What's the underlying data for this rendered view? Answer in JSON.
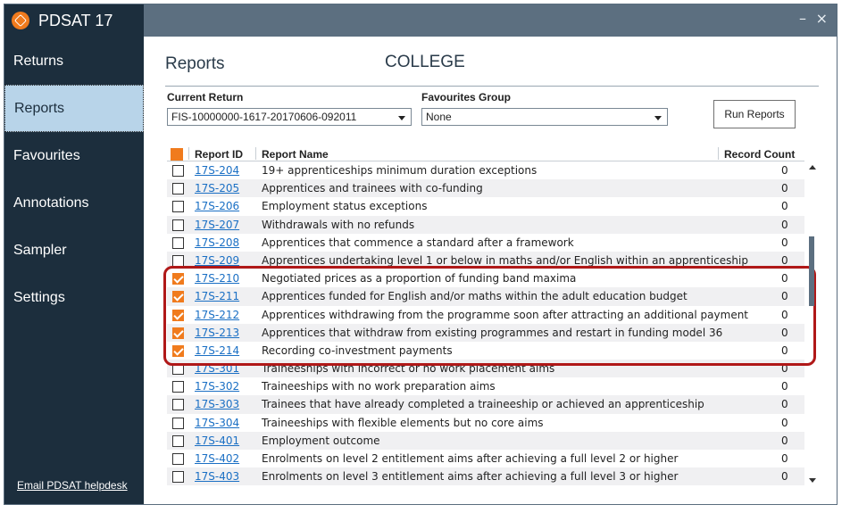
{
  "app": {
    "title": "PDSAT 17",
    "logo": "pdsat-logo-icon"
  },
  "window_controls": {
    "minimize": "–",
    "close": "×"
  },
  "sidebar": {
    "items": [
      {
        "label": "Returns"
      },
      {
        "label": "Reports"
      },
      {
        "label": "Favourites"
      },
      {
        "label": "Annotations"
      },
      {
        "label": "Sampler"
      },
      {
        "label": "Settings"
      }
    ],
    "active": "Reports",
    "helpdesk_link": "Email PDSAT helpdesk"
  },
  "main": {
    "page_title": "Reports",
    "organisation": "COLLEGE",
    "current_return": {
      "label": "Current Return",
      "value": "FIS-10000000-1617-20170606-092011"
    },
    "favourites_group": {
      "label": "Favourites Group",
      "value": "None"
    },
    "run_button": "Run Reports"
  },
  "table": {
    "headers": {
      "report_id": "Report ID",
      "report_name": "Report Name",
      "record_count": "Record Count"
    },
    "rows": [
      {
        "id": "17S-204",
        "name": "19+ apprenticeships minimum duration exceptions",
        "count": "0",
        "checked": false
      },
      {
        "id": "17S-205",
        "name": "Apprentices and trainees with co-funding",
        "count": "0",
        "checked": false
      },
      {
        "id": "17S-206",
        "name": "Employment status exceptions",
        "count": "0",
        "checked": false
      },
      {
        "id": "17S-207",
        "name": "Withdrawals with no refunds",
        "count": "0",
        "checked": false
      },
      {
        "id": "17S-208",
        "name": "Apprentices that commence a standard after a framework",
        "count": "0",
        "checked": false
      },
      {
        "id": "17S-209",
        "name": "Apprentices undertaking level 1 or below in maths and/or English within an apprenticeship",
        "count": "0",
        "checked": false
      },
      {
        "id": "17S-210",
        "name": "Negotiated prices as a proportion of funding band maxima",
        "count": "0",
        "checked": true
      },
      {
        "id": "17S-211",
        "name": "Apprentices funded for English and/or maths within the adult education budget",
        "count": "0",
        "checked": true
      },
      {
        "id": "17S-212",
        "name": "Apprentices withdrawing from the programme soon after attracting an additional payment",
        "count": "0",
        "checked": true
      },
      {
        "id": "17S-213",
        "name": "Apprentices that withdraw from existing programmes and restart in funding model 36",
        "count": "0",
        "checked": true
      },
      {
        "id": "17S-214",
        "name": "Recording co-investment payments",
        "count": "0",
        "checked": true
      },
      {
        "id": "17S-301",
        "name": "Traineeships with incorrect or no work placement aims",
        "count": "0",
        "checked": false
      },
      {
        "id": "17S-302",
        "name": "Traineeships with no work preparation aims",
        "count": "0",
        "checked": false
      },
      {
        "id": "17S-303",
        "name": "Trainees that have already completed a traineeship or achieved an apprenticeship",
        "count": "0",
        "checked": false
      },
      {
        "id": "17S-304",
        "name": "Traineeships with flexible elements but no core aims",
        "count": "0",
        "checked": false
      },
      {
        "id": "17S-401",
        "name": "Employment outcome",
        "count": "0",
        "checked": false
      },
      {
        "id": "17S-402",
        "name": "Enrolments on level 2 entitlement aims after achieving a full level 2 or higher",
        "count": "0",
        "checked": false
      },
      {
        "id": "17S-403",
        "name": "Enrolments on level 3 entitlement aims after achieving a full level 3 or higher",
        "count": "0",
        "checked": false
      }
    ]
  },
  "colors": {
    "accent": "#f07b1d",
    "sidebar": "#1c2e3d",
    "topbar": "#5c6f80",
    "active_nav": "#b8d4e9",
    "link": "#1a6fc4",
    "highlight": "#b01818"
  }
}
